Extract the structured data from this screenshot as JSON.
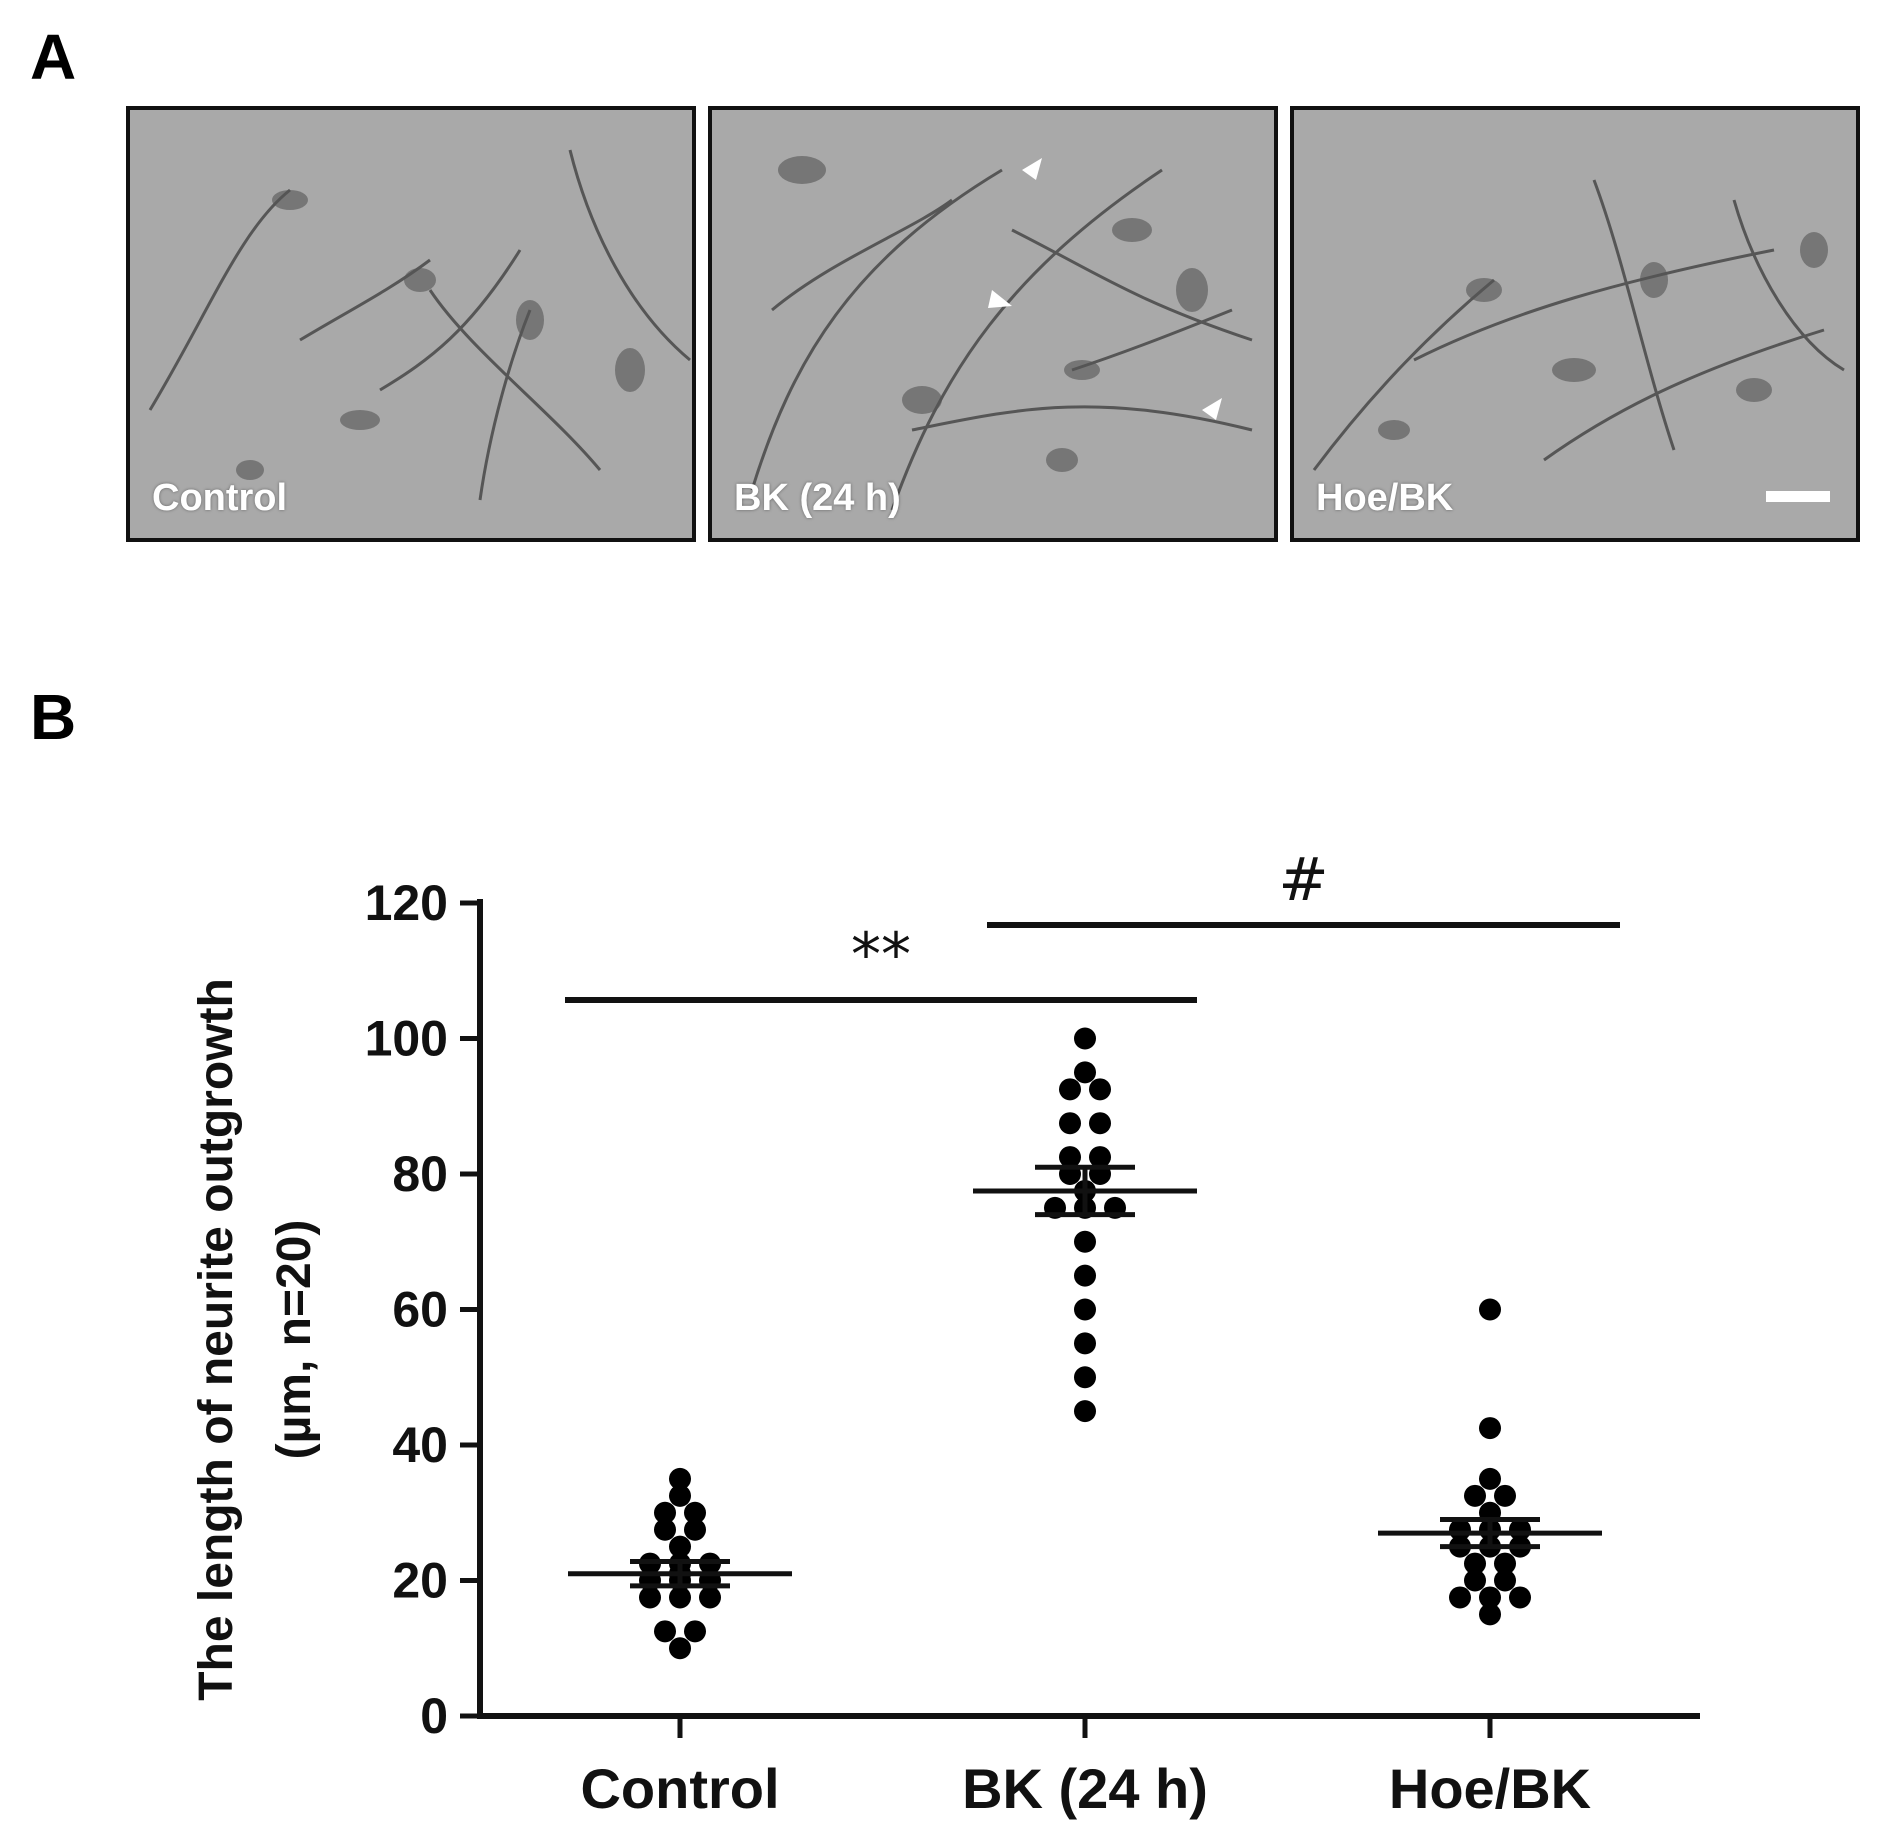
{
  "panel_a": {
    "letter": "A",
    "images": [
      {
        "label": "Control"
      },
      {
        "label": "BK (24 h)"
      },
      {
        "label": "Hoe/BK"
      }
    ]
  },
  "panel_b": {
    "letter": "B"
  },
  "chart_data": {
    "type": "scatter",
    "categories": [
      "Control",
      "BK (24 h)",
      "Hoe/BK"
    ],
    "ylabel_line1": "The length of neurite outgrowth",
    "ylabel_line2": "(µm, n=20)",
    "ylim": [
      0,
      120
    ],
    "yticks": [
      0,
      20,
      40,
      60,
      80,
      100,
      120
    ],
    "series": [
      {
        "category": "Control",
        "points": [
          35,
          32.5,
          30,
          30,
          27.5,
          27.5,
          25,
          22.5,
          22.5,
          22.5,
          21,
          20,
          20,
          20,
          17.5,
          17.5,
          17.5,
          12.5,
          12.5,
          10
        ],
        "mean": 21,
        "sem_upper": 22.8,
        "sem_lower": 19.2
      },
      {
        "category": "BK (24 h)",
        "points": [
          100,
          95,
          92.5,
          92.5,
          87.5,
          87.5,
          82.5,
          82.5,
          80,
          80,
          77.5,
          75,
          75,
          75,
          70,
          65,
          60,
          55,
          50,
          45
        ],
        "mean": 77.5,
        "sem_upper": 81,
        "sem_lower": 74
      },
      {
        "category": "Hoe/BK",
        "points": [
          60,
          42.5,
          35,
          32.5,
          32.5,
          30,
          27.5,
          27.5,
          27.5,
          25,
          25,
          25,
          22.5,
          22.5,
          20,
          20,
          17.5,
          17.5,
          17.5,
          15
        ],
        "mean": 27,
        "sem_upper": 29,
        "sem_lower": 25
      }
    ],
    "significance": [
      {
        "from": "Control",
        "to": "BK (24 h)",
        "label": "**"
      },
      {
        "from": "BK (24 h)",
        "to": "Hoe/BK",
        "label": "#"
      }
    ]
  }
}
